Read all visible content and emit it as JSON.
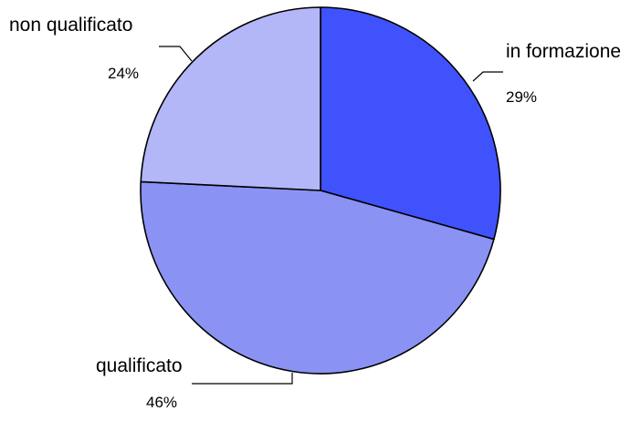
{
  "chart_data": {
    "type": "pie",
    "title": "",
    "categories": [
      "in formazione",
      "qualificato",
      "non qualificato"
    ],
    "values": [
      29,
      46,
      24
    ],
    "value_labels": [
      "29%",
      "46%",
      "24%"
    ],
    "colors": [
      "#4052fb",
      "#8a93f4",
      "#b3b7f8"
    ],
    "start_angle_deg": 90,
    "direction": "clockwise",
    "legend": "none"
  }
}
